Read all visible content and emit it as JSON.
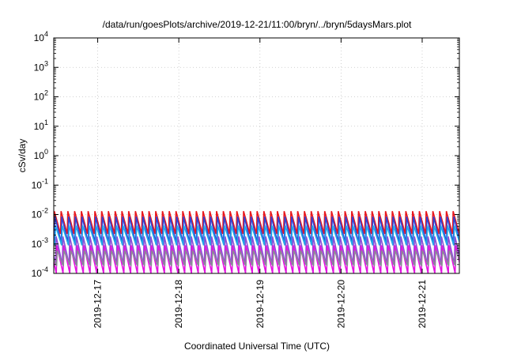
{
  "chart_data": {
    "type": "line",
    "title": "/data/run/goesPlots/archive/2019-12-21/11:00/bryn/../bryn/5daysMars.plot",
    "xlabel": "Coordinated Universal Time (UTC)",
    "ylabel": "cSv/day",
    "y_scale": "log",
    "ylim": [
      0.0001,
      10000
    ],
    "y_ticks": [
      {
        "base": "10",
        "exp": "-4",
        "value": 0.0001
      },
      {
        "base": "10",
        "exp": "-3",
        "value": 0.001
      },
      {
        "base": "10",
        "exp": "-2",
        "value": 0.01
      },
      {
        "base": "10",
        "exp": "-1",
        "value": 0.1
      },
      {
        "base": "10",
        "exp": "0",
        "value": 1
      },
      {
        "base": "10",
        "exp": "1",
        "value": 10
      },
      {
        "base": "10",
        "exp": "2",
        "value": 100
      },
      {
        "base": "10",
        "exp": "3",
        "value": 1000
      },
      {
        "base": "10",
        "exp": "4",
        "value": 10000
      }
    ],
    "xlim": [
      "2019-12-16T11:00",
      "2019-12-21T11:00"
    ],
    "x_ticks": [
      {
        "label": "2019-12-17",
        "value": "2019-12-17T00:00"
      },
      {
        "label": "2019-12-18",
        "value": "2019-12-18T00:00"
      },
      {
        "label": "2019-12-19",
        "value": "2019-12-19T00:00"
      },
      {
        "label": "2019-12-20",
        "value": "2019-12-20T00:00"
      },
      {
        "label": "2019-12-21",
        "value": "2019-12-21T00:00"
      }
    ],
    "grid": true,
    "oscillation_period_hours": 2.0,
    "series": [
      {
        "color": "#e8181e",
        "peak": 0.013,
        "trough": 0.0022,
        "phase_hours": 0.0
      },
      {
        "color": "#2f44d6",
        "peak": 0.0085,
        "trough": 0.0011,
        "phase_hours": 0.22
      },
      {
        "color": "#1fa8e8",
        "peak": 0.0042,
        "trough": 0.0009,
        "phase_hours": 0.35
      },
      {
        "color": "#8a4fd8",
        "peak": 0.0018,
        "trough": 0.0002,
        "phase_hours": 0.55
      },
      {
        "color": "#e414e0",
        "peak": 0.0009,
        "trough": 0.0001,
        "phase_hours": 0.75
      },
      {
        "color": "#8a8a96",
        "peak": 0.0006,
        "trough": 0.00018,
        "phase_hours": 0.85
      }
    ]
  }
}
